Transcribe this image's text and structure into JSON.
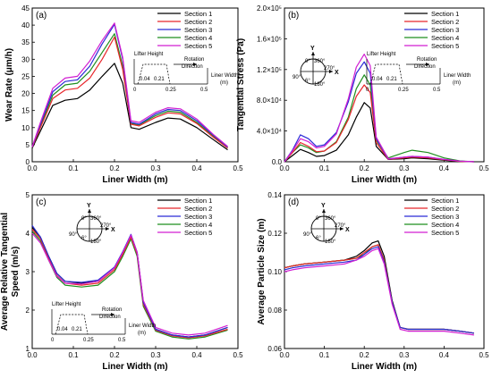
{
  "colors": [
    "#000000",
    "#e8262b",
    "#2b2bd6",
    "#1f8f1f",
    "#d21fd2"
  ],
  "inset_text": {
    "lifter_height": "Lifter Height",
    "rotation": "Rotation",
    "direction": "Direction",
    "liner_width": "Liner Width",
    "unit": "(m)",
    "t0": "0",
    "t004": "0.04",
    "t021": "0.21",
    "t025": "0.25",
    "t05": "0.5",
    "y_label": "Y",
    "x_label": "X",
    "a0": "0°",
    "a360": "360°",
    "a90": "90°",
    "a270": "270°",
    "a180": "180°",
    "a6": "6°"
  },
  "chart_data": [
    {
      "type": "line",
      "panel_label": "(a)",
      "xlabel": "Liner Width (m)",
      "ylabel": "Wear Rate (μm/h)",
      "xlim": [
        0,
        0.5
      ],
      "ylim": [
        0,
        45
      ],
      "xticks": [
        "0.0",
        "0.1",
        "0.2",
        "0.3",
        "0.4",
        "0.5"
      ],
      "yticks": [
        "0",
        "5",
        "10",
        "15",
        "20",
        "25",
        "30",
        "35",
        "40",
        "45"
      ],
      "legend": "top-right",
      "x": [
        0.0,
        0.02,
        0.05,
        0.08,
        0.11,
        0.14,
        0.17,
        0.2,
        0.22,
        0.24,
        0.26,
        0.3,
        0.33,
        0.36,
        0.4,
        0.44,
        0.475
      ],
      "series": [
        {
          "name": "Section 1",
          "values": [
            4,
            9,
            16.5,
            18,
            18.5,
            21,
            25,
            28.8,
            23,
            10,
            9.5,
            11.5,
            12.8,
            12.5,
            10,
            6.5,
            3.5
          ]
        },
        {
          "name": "Section 2",
          "values": [
            4.2,
            10,
            18.5,
            21,
            21.5,
            24.5,
            30,
            36.5,
            27,
            11,
            10.5,
            13,
            14.3,
            14,
            11.2,
            7.2,
            4
          ]
        },
        {
          "name": "Section 3",
          "values": [
            4.3,
            11,
            20.5,
            23.5,
            24,
            28,
            34.5,
            40.2,
            30,
            11.5,
            11,
            14,
            15.3,
            15,
            12,
            7.8,
            4.3
          ]
        },
        {
          "name": "Section 4",
          "values": [
            4.2,
            10.5,
            19.5,
            22.5,
            23,
            26.5,
            32,
            37.5,
            28,
            11.2,
            10.8,
            13.5,
            14.8,
            14.5,
            11.5,
            7.5,
            4.1
          ]
        },
        {
          "name": "Section 5",
          "values": [
            4.4,
            11.5,
            21.5,
            24.5,
            25,
            29.5,
            35.5,
            40.6,
            30.5,
            12,
            11.5,
            14.5,
            15.8,
            15.5,
            12.5,
            8,
            4.5
          ]
        }
      ]
    },
    {
      "type": "line",
      "panel_label": "(b)",
      "xlabel": "Liner Width (m)",
      "ylabel": "Tangential Stress (Pa)",
      "xlim": [
        0,
        0.5
      ],
      "ylim": [
        0,
        200000
      ],
      "xticks": [
        "0.0",
        "0.1",
        "0.2",
        "0.3",
        "0.4",
        "0.5"
      ],
      "yticks": [
        "0.0",
        "4.0×10⁴",
        "8.0×10⁴",
        "1.2×10⁵",
        "1.6×10⁵",
        "2.0×10⁵"
      ],
      "legend": "top-right",
      "x": [
        0.0,
        0.02,
        0.04,
        0.06,
        0.08,
        0.1,
        0.13,
        0.16,
        0.18,
        0.2,
        0.215,
        0.23,
        0.26,
        0.3,
        0.32,
        0.36,
        0.4,
        0.44,
        0.475
      ],
      "series": [
        {
          "name": "Section 1",
          "values": [
            0,
            8000,
            16000,
            12000,
            7000,
            8000,
            15000,
            35000,
            58000,
            77000,
            70000,
            20000,
            3000,
            4000,
            5000,
            4000,
            2000,
            500,
            0
          ]
        },
        {
          "name": "Section 2",
          "values": [
            0,
            12000,
            25000,
            20000,
            13000,
            14000,
            25000,
            55000,
            85000,
            100000,
            90000,
            25000,
            3000,
            5000,
            6000,
            5000,
            2500,
            500,
            0
          ]
        },
        {
          "name": "Section 3",
          "values": [
            0,
            15000,
            35000,
            30000,
            20000,
            22000,
            38000,
            78000,
            115000,
            130000,
            115000,
            30000,
            3500,
            6000,
            7000,
            6000,
            3000,
            800,
            0
          ]
        },
        {
          "name": "Section 4",
          "values": [
            0,
            12000,
            22000,
            18000,
            12000,
            14000,
            26000,
            58000,
            95000,
            113000,
            100000,
            28000,
            5000,
            12000,
            15000,
            12000,
            5000,
            1000,
            0
          ]
        },
        {
          "name": "Section 5",
          "values": [
            0,
            14000,
            30000,
            26000,
            18000,
            20000,
            36000,
            82000,
            123000,
            140000,
            125000,
            32000,
            4000,
            6000,
            7000,
            6000,
            3000,
            800,
            0
          ]
        }
      ]
    },
    {
      "type": "line",
      "panel_label": "(c)",
      "xlabel": "Liner Width (m)",
      "ylabel": "Average Relative Tangential Speed (m/s)",
      "ylabel_lines": [
        "Average Relative Tangential",
        "Speed (m/s)"
      ],
      "xlim": [
        0,
        0.5
      ],
      "ylim": [
        1,
        5
      ],
      "xticks": [
        "0.0",
        "0.1",
        "0.2",
        "0.3",
        "0.4",
        "0.5"
      ],
      "yticks": [
        "1",
        "2",
        "3",
        "4",
        "5"
      ],
      "legend": "top-right",
      "x": [
        0.0,
        0.02,
        0.04,
        0.06,
        0.08,
        0.12,
        0.16,
        0.2,
        0.22,
        0.24,
        0.255,
        0.27,
        0.3,
        0.34,
        0.38,
        0.42,
        0.475
      ],
      "series": [
        {
          "name": "Section 1",
          "values": [
            4.15,
            3.9,
            3.4,
            2.95,
            2.75,
            2.7,
            2.75,
            3.1,
            3.5,
            3.95,
            3.5,
            2.2,
            1.5,
            1.35,
            1.3,
            1.35,
            1.55
          ]
        },
        {
          "name": "Section 2",
          "values": [
            4.1,
            3.85,
            3.35,
            2.9,
            2.7,
            2.65,
            2.7,
            3.05,
            3.45,
            3.9,
            3.45,
            2.15,
            1.48,
            1.33,
            1.28,
            1.33,
            1.5
          ]
        },
        {
          "name": "Section 3",
          "values": [
            4.2,
            3.9,
            3.4,
            2.95,
            2.75,
            2.72,
            2.78,
            3.12,
            3.52,
            3.97,
            3.5,
            2.2,
            1.5,
            1.35,
            1.3,
            1.35,
            1.55
          ]
        },
        {
          "name": "Section 4",
          "values": [
            4.05,
            3.8,
            3.3,
            2.85,
            2.65,
            2.6,
            2.65,
            3.0,
            3.4,
            3.85,
            3.4,
            2.1,
            1.45,
            1.3,
            1.25,
            1.3,
            1.48
          ]
        },
        {
          "name": "Section 5",
          "values": [
            4.0,
            3.75,
            3.3,
            2.88,
            2.7,
            2.68,
            2.75,
            3.1,
            3.5,
            3.95,
            3.5,
            2.25,
            1.55,
            1.4,
            1.35,
            1.4,
            1.6
          ]
        }
      ]
    },
    {
      "type": "line",
      "panel_label": "(d)",
      "xlabel": "Liner Width (m)",
      "ylabel": "Average Particle Size (m)",
      "xlim": [
        0,
        0.5
      ],
      "ylim": [
        0.06,
        0.14
      ],
      "xticks": [
        "0.0",
        "0.1",
        "0.2",
        "0.3",
        "0.4",
        "0.5"
      ],
      "yticks": [
        "0.06",
        "0.08",
        "0.10",
        "0.12",
        "0.14"
      ],
      "legend": "top-right",
      "x": [
        0.0,
        0.02,
        0.05,
        0.1,
        0.15,
        0.18,
        0.2,
        0.22,
        0.235,
        0.25,
        0.27,
        0.29,
        0.31,
        0.35,
        0.4,
        0.44,
        0.475
      ],
      "series": [
        {
          "name": "Section 1",
          "values": [
            0.102,
            0.103,
            0.104,
            0.105,
            0.106,
            0.108,
            0.111,
            0.115,
            0.116,
            0.108,
            0.085,
            0.071,
            0.07,
            0.07,
            0.07,
            0.069,
            0.068
          ]
        },
        {
          "name": "Section 2",
          "values": [
            0.102,
            0.103,
            0.104,
            0.105,
            0.106,
            0.107,
            0.11,
            0.113,
            0.114,
            0.106,
            0.084,
            0.071,
            0.07,
            0.07,
            0.07,
            0.069,
            0.068
          ]
        },
        {
          "name": "Section 3",
          "values": [
            0.101,
            0.102,
            0.103,
            0.104,
            0.105,
            0.106,
            0.109,
            0.112,
            0.113,
            0.105,
            0.084,
            0.071,
            0.07,
            0.07,
            0.07,
            0.069,
            0.068
          ]
        },
        {
          "name": "Section 4",
          "values": [
            0.102,
            0.103,
            0.104,
            0.105,
            0.106,
            0.107,
            0.109,
            0.113,
            0.114,
            0.106,
            0.084,
            0.071,
            0.07,
            0.07,
            0.07,
            0.069,
            0.068
          ]
        },
        {
          "name": "Section 5",
          "values": [
            0.1,
            0.101,
            0.102,
            0.103,
            0.104,
            0.106,
            0.108,
            0.111,
            0.112,
            0.104,
            0.083,
            0.07,
            0.069,
            0.069,
            0.069,
            0.068,
            0.067
          ]
        }
      ]
    }
  ]
}
